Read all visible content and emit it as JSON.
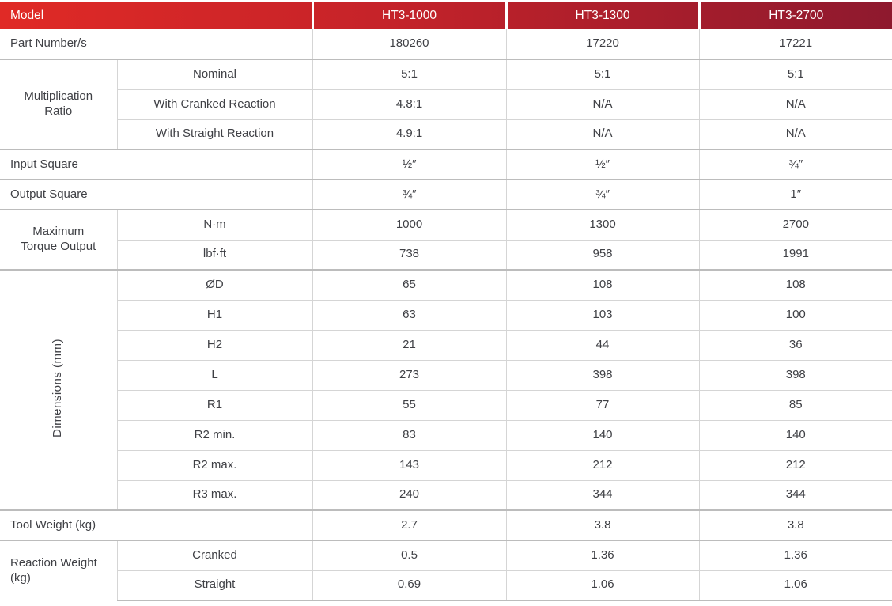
{
  "colors": {
    "header_gradient_start": "#e02a26",
    "header_gradient_end": "#8e192e",
    "body_text": "#3f4045",
    "border_heavy": "#bcbcbc",
    "border_light": "#d5d5d5"
  },
  "header": {
    "model_label": "Model",
    "columns": [
      "HT3-1000",
      "HT3-1300",
      "HT3-2700"
    ]
  },
  "specs": {
    "part_number": {
      "label": "Part Number/s",
      "values": [
        "180260",
        "17220",
        "17221"
      ]
    },
    "multiplication_ratio": {
      "label": "Multiplication Ratio",
      "rows": [
        {
          "label": "Nominal",
          "values": [
            "5:1",
            "5:1",
            "5:1"
          ]
        },
        {
          "label": "With Cranked Reaction",
          "values": [
            "4.8:1",
            "N/A",
            "N/A"
          ]
        },
        {
          "label": "With Straight Reaction",
          "values": [
            "4.9:1",
            "N/A",
            "N/A"
          ]
        }
      ]
    },
    "input_square": {
      "label": "Input Square",
      "values": [
        "½″",
        "½″",
        "¾″"
      ]
    },
    "output_square": {
      "label": "Output Square",
      "values": [
        "¾″",
        "¾″",
        "1″"
      ]
    },
    "max_torque": {
      "label": "Maximum Torque Output",
      "rows": [
        {
          "label": "N·m",
          "values": [
            "1000",
            "1300",
            "2700"
          ]
        },
        {
          "label": "lbf·ft",
          "values": [
            "738",
            "958",
            "1991"
          ]
        }
      ]
    },
    "dimensions": {
      "label": "Dimensions (mm)",
      "rows": [
        {
          "label": "ØD",
          "values": [
            "65",
            "108",
            "108"
          ]
        },
        {
          "label": "H1",
          "values": [
            "63",
            "103",
            "100"
          ]
        },
        {
          "label": "H2",
          "values": [
            "21",
            "44",
            "36"
          ]
        },
        {
          "label": "L",
          "values": [
            "273",
            "398",
            "398"
          ]
        },
        {
          "label": "R1",
          "values": [
            "55",
            "77",
            "85"
          ]
        },
        {
          "label": "R2 min.",
          "values": [
            "83",
            "140",
            "140"
          ]
        },
        {
          "label": "R2 max.",
          "values": [
            "143",
            "212",
            "212"
          ]
        },
        {
          "label": "R3 max.",
          "values": [
            "240",
            "344",
            "344"
          ]
        }
      ]
    },
    "tool_weight": {
      "label": "Tool Weight (kg)",
      "values": [
        "2.7",
        "3.8",
        "3.8"
      ]
    },
    "reaction_weight": {
      "label": "Reaction Weight (kg)",
      "rows": [
        {
          "label": "Cranked",
          "values": [
            "0.5",
            "1.36",
            "1.36"
          ]
        },
        {
          "label": "Straight",
          "values": [
            "0.69",
            "1.06",
            "1.06"
          ]
        }
      ]
    }
  }
}
